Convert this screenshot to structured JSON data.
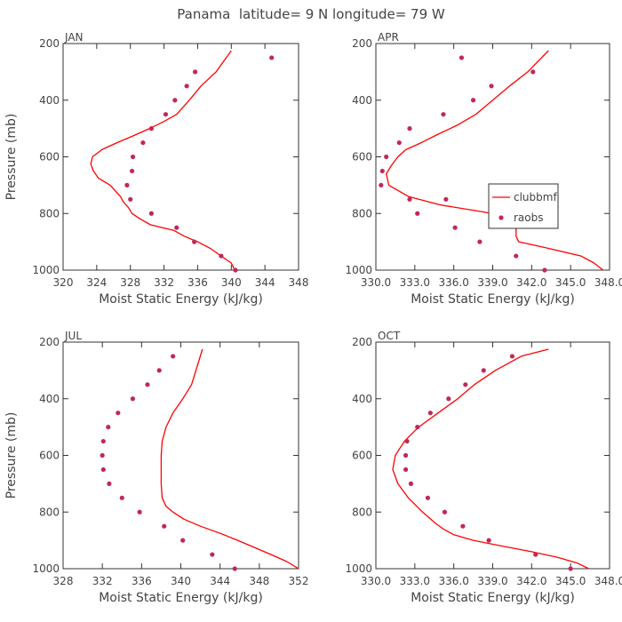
{
  "page_title": "Panama  latitude= 9 N longitude= 79 W",
  "colors": {
    "model": "#ff0000",
    "obs": "#c0285a",
    "axis": "#333333"
  },
  "chart_data": [
    {
      "type": "line",
      "panel_label": "JAN",
      "xlabel": "Moist Static Energy (kJ/kg)",
      "ylabel": "Pressure (mb)",
      "xlim": [
        320,
        348
      ],
      "xticks": [
        320,
        324,
        328,
        332,
        336,
        340,
        344,
        348
      ],
      "xtick_labels": [
        "320",
        "324",
        "328",
        "332",
        "336",
        "340",
        "344",
        "348"
      ],
      "ylim": [
        1000,
        200
      ],
      "yticks": [
        200,
        400,
        600,
        800,
        1000
      ],
      "ytick_labels": [
        "200",
        "400",
        "600",
        "800",
        "1000"
      ],
      "legend": null,
      "series": [
        {
          "kind": "line",
          "x": [
            340.4,
            340,
            338.8,
            337.6,
            336,
            334.4,
            333.2,
            330.4,
            329.2,
            328.2,
            327.8,
            327.2,
            326.8,
            325.6,
            324.2,
            323.6,
            323.3,
            323.5,
            324.6,
            326.4,
            328.4,
            330.3,
            332,
            333.5,
            335,
            336.4,
            338.2,
            340
          ],
          "y": [
            1000,
            975,
            950,
            925,
            900,
            880,
            860,
            840,
            820,
            800,
            780,
            760,
            740,
            700,
            675,
            650,
            625,
            600,
            575,
            550,
            525,
            500,
            475,
            450,
            400,
            350,
            300,
            225
          ]
        },
        {
          "kind": "scatter",
          "x": [
            340.5,
            338.8,
            335.6,
            333.5,
            330.5,
            328,
            327.6,
            328.2,
            328.3,
            329.5,
            330.5,
            332.2,
            333.3,
            334.7,
            335.7,
            344.8
          ],
          "y": [
            1000,
            950,
            900,
            850,
            800,
            750,
            700,
            650,
            600,
            550,
            500,
            450,
            400,
            350,
            300,
            250
          ]
        }
      ]
    },
    {
      "type": "line",
      "panel_label": "APR",
      "xlabel": "Moist Static Energy (kJ/kg)",
      "ylabel": "",
      "xlim": [
        330,
        348
      ],
      "xticks": [
        330,
        333,
        336,
        339,
        342,
        345,
        348
      ],
      "xtick_labels": [
        "330.0",
        "333.0",
        "336.0",
        "339.0",
        "342.0",
        "345.0",
        "348.0"
      ],
      "ylim": [
        1000,
        200
      ],
      "yticks": [
        200,
        400,
        600,
        800,
        1000
      ],
      "ytick_labels": [
        "200",
        "400",
        "600",
        "800",
        "1000"
      ],
      "legend": {
        "labels": [
          "clubbmf",
          "raobs"
        ],
        "position": "center-right"
      },
      "series": [
        {
          "kind": "line",
          "name": "clubbmf",
          "x": [
            347.5,
            346.8,
            345.8,
            343,
            341,
            340.8,
            340.8,
            340.2,
            337.7,
            335,
            332.5,
            331,
            330.8,
            331.2,
            331.7,
            332.3,
            333.5,
            334.8,
            336.2,
            337.7,
            339,
            340.3,
            341.7,
            343.3
          ],
          "y": [
            1000,
            975,
            950,
            920,
            900,
            880,
            840,
            810,
            790,
            770,
            740,
            700,
            660,
            630,
            600,
            575,
            550,
            520,
            490,
            450,
            400,
            350,
            300,
            225
          ]
        },
        {
          "kind": "scatter",
          "name": "raobs",
          "x": [
            343,
            340.8,
            338,
            336.1,
            333.2,
            340.5,
            335.4,
            332.6,
            330.4,
            330.5,
            330.8,
            331.8,
            332.6,
            335.2,
            337.5,
            338.9,
            342.1,
            336.6
          ],
          "y": [
            1000,
            950,
            900,
            850,
            800,
            810,
            750,
            750,
            700,
            650,
            600,
            550,
            500,
            450,
            400,
            350,
            300,
            250
          ]
        }
      ]
    },
    {
      "type": "line",
      "panel_label": "JUL",
      "xlabel": "Moist Static Energy (kJ/kg)",
      "ylabel": "Pressure (mb)",
      "xlim": [
        328,
        352
      ],
      "xticks": [
        328,
        332,
        336,
        340,
        344,
        348,
        352
      ],
      "xtick_labels": [
        "328",
        "332",
        "336",
        "340",
        "344",
        "348",
        "352"
      ],
      "ylim": [
        1000,
        200
      ],
      "yticks": [
        200,
        400,
        600,
        800,
        1000
      ],
      "ytick_labels": [
        "200",
        "400",
        "600",
        "800",
        "1000"
      ],
      "legend": null,
      "series": [
        {
          "kind": "line",
          "x": [
            352,
            350.8,
            349.2,
            347.5,
            345.8,
            344,
            342,
            340.3,
            339.2,
            338.5,
            338.1,
            338,
            338,
            338.1,
            338.5,
            339.2,
            340.2,
            341.1,
            342.2
          ],
          "y": [
            1000,
            975,
            950,
            925,
            900,
            875,
            850,
            825,
            800,
            780,
            750,
            700,
            600,
            550,
            500,
            450,
            400,
            350,
            225
          ]
        },
        {
          "kind": "scatter",
          "x": [
            345.5,
            343.2,
            340.2,
            338.3,
            335.8,
            334,
            332.7,
            332.1,
            332,
            332.1,
            332.6,
            333.6,
            335.1,
            336.6,
            337.8,
            339.2
          ],
          "y": [
            1000,
            950,
            900,
            850,
            800,
            750,
            700,
            650,
            600,
            550,
            500,
            450,
            400,
            350,
            300,
            250
          ]
        }
      ]
    },
    {
      "type": "line",
      "panel_label": "OCT",
      "xlabel": "Moist Static Energy (kJ/kg)",
      "ylabel": "",
      "xlim": [
        330,
        348
      ],
      "xticks": [
        330,
        333,
        336,
        339,
        342,
        345,
        348
      ],
      "xtick_labels": [
        "330.0",
        "333.0",
        "336.0",
        "339.0",
        "342.0",
        "345.0",
        "348.0"
      ],
      "ylim": [
        1000,
        200
      ],
      "yticks": [
        200,
        400,
        600,
        800,
        1000
      ],
      "ytick_labels": [
        "200",
        "400",
        "600",
        "800",
        "1000"
      ],
      "legend": null,
      "series": [
        {
          "kind": "line",
          "x": [
            346.4,
            345.5,
            344,
            342,
            339.7,
            337.5,
            336,
            335.2,
            334.6,
            333.6,
            332.5,
            331.7,
            331.3,
            331.5,
            332.2,
            333.3,
            334.8,
            336.3,
            337.6,
            339.2,
            341.2,
            343.3
          ],
          "y": [
            1000,
            980,
            960,
            940,
            920,
            900,
            880,
            860,
            840,
            800,
            750,
            700,
            650,
            600,
            550,
            500,
            450,
            400,
            350,
            300,
            250,
            225
          ]
        },
        {
          "kind": "scatter",
          "x": [
            345,
            342.3,
            338.7,
            336.7,
            335.3,
            334,
            332.7,
            332.3,
            332.3,
            332.4,
            333.2,
            334.2,
            335.6,
            336.9,
            338.3,
            340.5
          ],
          "y": [
            1000,
            950,
            900,
            850,
            800,
            750,
            700,
            650,
            600,
            550,
            500,
            450,
            400,
            350,
            300,
            250
          ]
        }
      ]
    }
  ]
}
